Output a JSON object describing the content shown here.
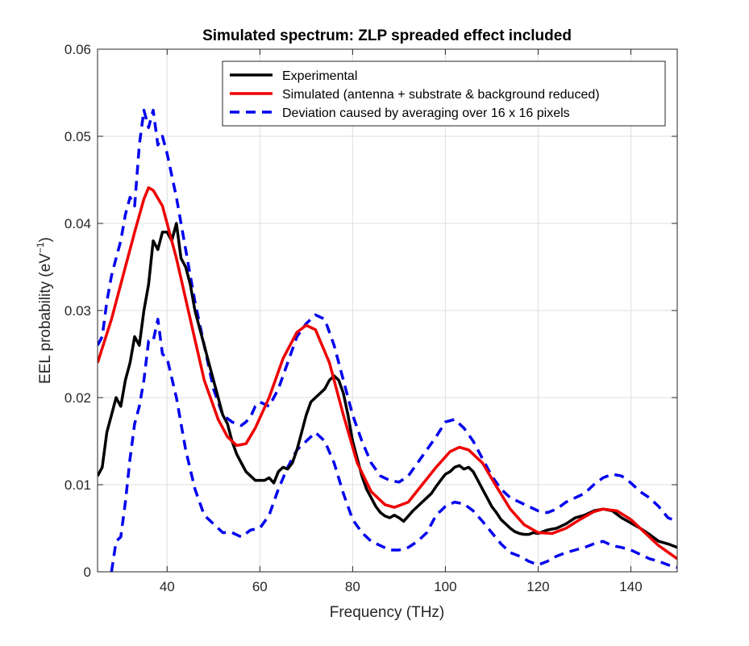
{
  "chart_data": {
    "type": "line",
    "title": "Simulated spectrum: ZLP spreaded effect included",
    "xlabel": "Frequency (THz)",
    "ylabel_main": "EEL probability (eV",
    "ylabel_sup": "−1",
    "ylabel_close": ")",
    "xlim": [
      25,
      150
    ],
    "ylim": [
      0,
      0.06
    ],
    "xticks": [
      40,
      60,
      80,
      100,
      120,
      140
    ],
    "xtick_labels": [
      "40",
      "60",
      "80",
      "100",
      "120",
      "140"
    ],
    "yticks": [
      0,
      0.01,
      0.02,
      0.03,
      0.04,
      0.05,
      0.06
    ],
    "ytick_labels": [
      "0",
      "0.01",
      "0.02",
      "0.03",
      "0.04",
      "0.05",
      "0.06"
    ],
    "grid": true,
    "legend_position": "top-right",
    "series": [
      {
        "name": "Experimental",
        "color": "#000000",
        "style": "solid",
        "x": [
          25,
          26,
          27,
          28,
          29,
          30,
          31,
          32,
          33,
          34,
          35,
          36,
          37,
          38,
          39,
          40,
          41,
          42,
          43,
          44,
          45,
          46,
          47,
          48,
          49,
          50,
          51,
          52,
          53,
          54,
          55,
          56,
          57,
          58,
          59,
          60,
          61,
          62,
          63,
          64,
          65,
          66,
          67,
          68,
          69,
          70,
          71,
          72,
          73,
          74,
          75,
          76,
          77,
          78,
          79,
          80,
          81,
          82,
          83,
          84,
          85,
          86,
          87,
          88,
          89,
          90,
          91,
          92,
          93,
          94,
          95,
          96,
          97,
          98,
          99,
          100,
          101,
          102,
          103,
          104,
          105,
          106,
          107,
          108,
          109,
          110,
          111,
          112,
          113,
          114,
          115,
          116,
          117,
          118,
          119,
          120,
          122,
          124,
          126,
          128,
          130,
          132,
          134,
          136,
          138,
          140,
          142,
          144,
          146,
          148,
          150
        ],
        "y": [
          0.011,
          0.012,
          0.016,
          0.018,
          0.02,
          0.019,
          0.022,
          0.024,
          0.027,
          0.026,
          0.03,
          0.033,
          0.038,
          0.037,
          0.039,
          0.039,
          0.038,
          0.04,
          0.036,
          0.035,
          0.033,
          0.03,
          0.028,
          0.026,
          0.024,
          0.022,
          0.02,
          0.018,
          0.017,
          0.015,
          0.0135,
          0.0125,
          0.0115,
          0.011,
          0.0105,
          0.0105,
          0.0105,
          0.0108,
          0.0102,
          0.0115,
          0.012,
          0.0118,
          0.0125,
          0.014,
          0.016,
          0.018,
          0.0195,
          0.02,
          0.0205,
          0.021,
          0.022,
          0.0225,
          0.022,
          0.0205,
          0.018,
          0.015,
          0.013,
          0.011,
          0.0095,
          0.0085,
          0.0075,
          0.0068,
          0.0064,
          0.0062,
          0.0065,
          0.0062,
          0.0058,
          0.0064,
          0.007,
          0.0075,
          0.008,
          0.0085,
          0.009,
          0.0098,
          0.0105,
          0.0112,
          0.0115,
          0.012,
          0.0122,
          0.0118,
          0.012,
          0.0115,
          0.0105,
          0.0095,
          0.0085,
          0.0075,
          0.0068,
          0.006,
          0.0055,
          0.005,
          0.0046,
          0.0044,
          0.0043,
          0.0043,
          0.0045,
          0.0044,
          0.0048,
          0.005,
          0.0055,
          0.0062,
          0.0065,
          0.007,
          0.0072,
          0.007,
          0.0062,
          0.0056,
          0.005,
          0.0043,
          0.0035,
          0.0032,
          0.0028
        ]
      },
      {
        "name": "Simulated (antenna + substrate & background reduced)",
        "color": "#ee0000",
        "style": "solid",
        "x": [
          25,
          28,
          31,
          33,
          35,
          36,
          37,
          39,
          42,
          45,
          48,
          51,
          53,
          55,
          57,
          59,
          62,
          65,
          68,
          70,
          72,
          75,
          78,
          81,
          84,
          87,
          89,
          92,
          95,
          98,
          101,
          103,
          105,
          108,
          111,
          114,
          117,
          120,
          123,
          126,
          129,
          132,
          134,
          137,
          140,
          143,
          146,
          150
        ],
        "y": [
          0.024,
          0.029,
          0.035,
          0.039,
          0.0428,
          0.0441,
          0.0438,
          0.042,
          0.036,
          0.029,
          0.022,
          0.0175,
          0.0155,
          0.0145,
          0.0147,
          0.0165,
          0.02,
          0.0245,
          0.0275,
          0.0283,
          0.0278,
          0.024,
          0.018,
          0.0125,
          0.0092,
          0.0077,
          0.0074,
          0.008,
          0.01,
          0.012,
          0.0138,
          0.0143,
          0.014,
          0.0125,
          0.0098,
          0.0072,
          0.0054,
          0.0045,
          0.0044,
          0.005,
          0.006,
          0.0069,
          0.0072,
          0.007,
          0.006,
          0.0045,
          0.003,
          0.0015
        ]
      },
      {
        "name": "Deviation caused by averaging over 16 x 16 pixels",
        "color": "#0000ee",
        "style": "dashed",
        "x": [
          25,
          26,
          27,
          28,
          29,
          30,
          31,
          32,
          33,
          34,
          35,
          36,
          37,
          38,
          39,
          40,
          42,
          44,
          46,
          48,
          50,
          52,
          54,
          55,
          56,
          57,
          58,
          59,
          60,
          62,
          64,
          66,
          68,
          70,
          72,
          74,
          76,
          78,
          80,
          82,
          84,
          86,
          88,
          90,
          92,
          94,
          96,
          98,
          100,
          102,
          104,
          106,
          108,
          110,
          112,
          114,
          116,
          118,
          120,
          122,
          124,
          126,
          128,
          130,
          132,
          134,
          136,
          138,
          140,
          142,
          144,
          146,
          148,
          150
        ],
        "y": [
          0.026,
          0.027,
          0.031,
          0.034,
          0.036,
          0.038,
          0.041,
          0.043,
          0.042,
          0.049,
          0.053,
          0.051,
          0.053,
          0.049,
          0.05,
          0.048,
          0.043,
          0.037,
          0.031,
          0.026,
          0.021,
          0.018,
          0.0172,
          0.017,
          0.0168,
          0.0172,
          0.0178,
          0.019,
          0.0195,
          0.019,
          0.021,
          0.024,
          0.027,
          0.0285,
          0.0295,
          0.029,
          0.026,
          0.022,
          0.018,
          0.015,
          0.0125,
          0.011,
          0.0105,
          0.0103,
          0.011,
          0.0125,
          0.014,
          0.0155,
          0.0172,
          0.0175,
          0.0165,
          0.015,
          0.013,
          0.011,
          0.0095,
          0.0085,
          0.008,
          0.0075,
          0.007,
          0.0068,
          0.0072,
          0.008,
          0.0085,
          0.009,
          0.01,
          0.0108,
          0.0112,
          0.011,
          0.0102,
          0.0092,
          0.0085,
          0.0075,
          0.0062,
          0.0058
        ],
        "x2": [
          28,
          29,
          30,
          31,
          32,
          33,
          34,
          35,
          36,
          37,
          38,
          39,
          40,
          42,
          44,
          46,
          48,
          50,
          52,
          54,
          56,
          58,
          60,
          62,
          64,
          66,
          68,
          70,
          72,
          74,
          76,
          78,
          80,
          82,
          84,
          86,
          88,
          90,
          92,
          94,
          96,
          98,
          100,
          102,
          104,
          106,
          108,
          110,
          112,
          114,
          116,
          118,
          120,
          122,
          124,
          126,
          128,
          130,
          132,
          134,
          136,
          138,
          140,
          142,
          144,
          146,
          148,
          150
        ],
        "y2": [
          0.0,
          0.0035,
          0.004,
          0.008,
          0.013,
          0.017,
          0.019,
          0.022,
          0.0265,
          0.0265,
          0.029,
          0.025,
          0.0245,
          0.02,
          0.014,
          0.0095,
          0.0065,
          0.0055,
          0.0045,
          0.0045,
          0.004,
          0.0048,
          0.005,
          0.0065,
          0.0095,
          0.012,
          0.014,
          0.015,
          0.016,
          0.015,
          0.0125,
          0.009,
          0.006,
          0.0045,
          0.0035,
          0.003,
          0.0025,
          0.0025,
          0.0028,
          0.0035,
          0.0045,
          0.0065,
          0.0075,
          0.008,
          0.0078,
          0.007,
          0.0058,
          0.0045,
          0.0032,
          0.0022,
          0.0018,
          0.0012,
          0.0008,
          0.0012,
          0.0018,
          0.0022,
          0.0025,
          0.0028,
          0.0032,
          0.0035,
          0.003,
          0.0028,
          0.0025,
          0.002,
          0.0015,
          0.0012,
          0.0008,
          0.0005
        ]
      }
    ]
  }
}
